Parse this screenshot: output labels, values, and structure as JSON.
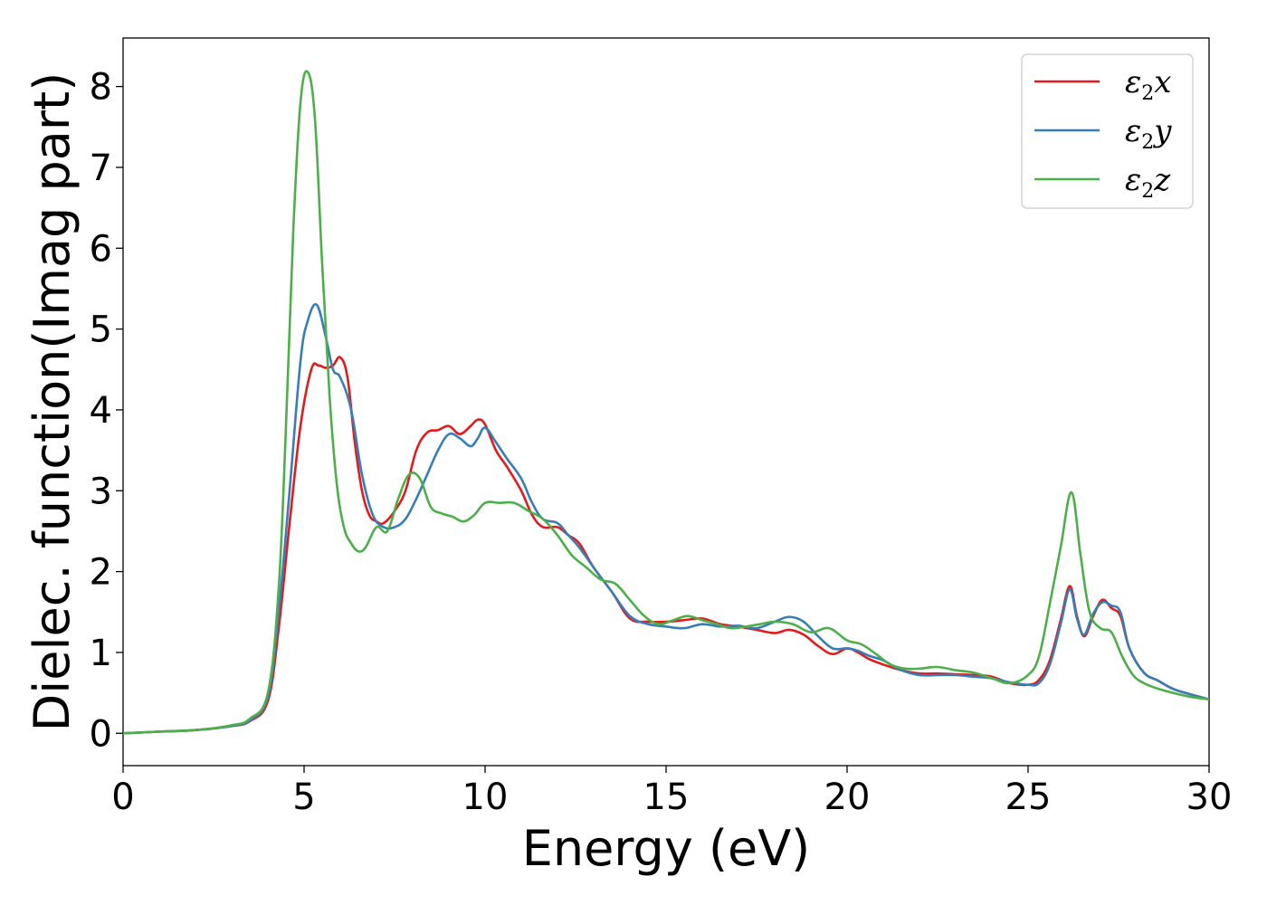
{
  "chart_data": {
    "type": "line",
    "xlabel": "Energy (eV)",
    "ylabel": "Dielec. function(Imag part)",
    "xlim": [
      0,
      30
    ],
    "ylim": [
      -0.4,
      8.6
    ],
    "xticks": [
      "0",
      "5",
      "10",
      "15",
      "20",
      "25",
      "30"
    ],
    "yticks": [
      "0",
      "1",
      "2",
      "3",
      "4",
      "5",
      "6",
      "7",
      "8"
    ],
    "grid": false,
    "legend_position": "top-right",
    "series": [
      {
        "name": "ε2x",
        "legend": {
          "symbol": "ε",
          "sub": "2",
          "axis": "x"
        },
        "color": "#e41a1c",
        "x": [
          0,
          1,
          2,
          3,
          3.5,
          4,
          4.3,
          4.6,
          4.9,
          5.2,
          5.4,
          5.6,
          5.8,
          6.0,
          6.2,
          6.4,
          6.6,
          6.8,
          7.0,
          7.2,
          7.5,
          7.8,
          8.1,
          8.4,
          8.7,
          9.0,
          9.3,
          9.6,
          9.8,
          10.0,
          10.3,
          10.6,
          11.0,
          11.3,
          11.6,
          12.0,
          12.3,
          12.6,
          13.0,
          13.5,
          14.0,
          14.5,
          15.0,
          15.5,
          16.0,
          16.5,
          17.0,
          17.5,
          18.0,
          18.4,
          18.8,
          19.2,
          19.6,
          20.0,
          20.3,
          20.6,
          21.0,
          21.5,
          22.0,
          22.5,
          23.0,
          23.5,
          24.0,
          24.5,
          25.0,
          25.3,
          25.6,
          25.9,
          26.15,
          26.35,
          26.55,
          26.8,
          27.05,
          27.3,
          27.55,
          27.8,
          28.2,
          28.6,
          29.0,
          29.5,
          30.0
        ],
        "y": [
          0,
          0.02,
          0.04,
          0.09,
          0.15,
          0.4,
          1.3,
          2.6,
          3.8,
          4.5,
          4.55,
          4.52,
          4.55,
          4.65,
          4.4,
          3.6,
          3.0,
          2.7,
          2.62,
          2.6,
          2.75,
          3.0,
          3.5,
          3.72,
          3.75,
          3.8,
          3.7,
          3.8,
          3.88,
          3.82,
          3.5,
          3.3,
          3.0,
          2.7,
          2.55,
          2.55,
          2.45,
          2.35,
          2.05,
          1.75,
          1.42,
          1.38,
          1.38,
          1.4,
          1.42,
          1.35,
          1.32,
          1.28,
          1.24,
          1.28,
          1.22,
          1.08,
          0.98,
          1.05,
          1.0,
          0.92,
          0.85,
          0.78,
          0.74,
          0.74,
          0.73,
          0.72,
          0.7,
          0.62,
          0.6,
          0.66,
          0.9,
          1.4,
          1.82,
          1.45,
          1.2,
          1.45,
          1.65,
          1.55,
          1.45,
          1.05,
          0.75,
          0.65,
          0.55,
          0.48,
          0.42
        ]
      },
      {
        "name": "ε2y",
        "legend": {
          "symbol": "ε",
          "sub": "2",
          "axis": "y"
        },
        "color": "#377eb8",
        "x": [
          0,
          1,
          2,
          3,
          3.5,
          4,
          4.3,
          4.6,
          4.9,
          5.1,
          5.35,
          5.6,
          5.8,
          6.0,
          6.3,
          6.6,
          6.9,
          7.2,
          7.5,
          7.8,
          8.1,
          8.4,
          8.7,
          9.0,
          9.3,
          9.6,
          9.8,
          10.0,
          10.3,
          10.6,
          11.0,
          11.3,
          11.6,
          12.0,
          12.3,
          12.6,
          13.0,
          13.5,
          14.0,
          14.5,
          15.0,
          15.5,
          16.0,
          16.5,
          17.0,
          17.5,
          18.0,
          18.4,
          18.8,
          19.2,
          19.6,
          20.0,
          20.3,
          20.6,
          21.0,
          21.5,
          22.0,
          22.5,
          23.0,
          23.5,
          24.0,
          24.5,
          25.0,
          25.3,
          25.6,
          25.9,
          26.15,
          26.35,
          26.55,
          26.8,
          27.05,
          27.3,
          27.55,
          27.8,
          28.2,
          28.6,
          29.0,
          29.5,
          30.0
        ],
        "y": [
          0,
          0.02,
          0.04,
          0.09,
          0.16,
          0.45,
          1.5,
          3.0,
          4.6,
          5.1,
          5.3,
          4.9,
          4.5,
          4.4,
          4.0,
          3.2,
          2.7,
          2.55,
          2.55,
          2.65,
          2.9,
          3.2,
          3.5,
          3.7,
          3.65,
          3.55,
          3.65,
          3.78,
          3.6,
          3.4,
          3.15,
          2.85,
          2.65,
          2.6,
          2.45,
          2.3,
          2.05,
          1.75,
          1.45,
          1.35,
          1.32,
          1.3,
          1.35,
          1.32,
          1.33,
          1.3,
          1.38,
          1.44,
          1.38,
          1.2,
          1.05,
          1.05,
          1.02,
          0.96,
          0.9,
          0.78,
          0.72,
          0.72,
          0.72,
          0.7,
          0.68,
          0.63,
          0.6,
          0.62,
          0.85,
          1.35,
          1.78,
          1.42,
          1.22,
          1.48,
          1.62,
          1.58,
          1.5,
          1.05,
          0.75,
          0.65,
          0.55,
          0.48,
          0.42
        ]
      },
      {
        "name": "ε2z",
        "legend": {
          "symbol": "ε",
          "sub": "2",
          "axis": "z"
        },
        "color": "#4daf4a",
        "x": [
          0,
          1,
          2,
          3,
          3.5,
          4,
          4.3,
          4.5,
          4.7,
          4.9,
          5.1,
          5.3,
          5.5,
          5.7,
          5.9,
          6.1,
          6.3,
          6.5,
          6.7,
          7.0,
          7.3,
          7.6,
          7.9,
          8.2,
          8.5,
          8.8,
          9.1,
          9.4,
          9.7,
          10.0,
          10.4,
          10.8,
          11.2,
          11.6,
          12.0,
          12.4,
          12.8,
          13.2,
          13.6,
          14.0,
          14.4,
          14.8,
          15.2,
          15.6,
          16.0,
          16.4,
          16.8,
          17.2,
          17.6,
          18.0,
          18.5,
          19.0,
          19.5,
          20.0,
          20.4,
          20.8,
          21.2,
          21.6,
          22.0,
          22.5,
          23.0,
          23.5,
          24.0,
          24.5,
          25.0,
          25.3,
          25.6,
          25.9,
          26.2,
          26.45,
          26.7,
          27.0,
          27.3,
          27.6,
          27.9,
          28.2,
          28.6,
          29.0,
          29.5,
          30.0
        ],
        "y": [
          0,
          0.02,
          0.04,
          0.1,
          0.18,
          0.5,
          1.8,
          3.8,
          6.2,
          7.8,
          8.18,
          7.6,
          5.8,
          4.2,
          3.1,
          2.55,
          2.35,
          2.25,
          2.3,
          2.55,
          2.5,
          2.9,
          3.2,
          3.15,
          2.8,
          2.72,
          2.68,
          2.62,
          2.7,
          2.85,
          2.85,
          2.85,
          2.75,
          2.65,
          2.45,
          2.2,
          2.05,
          1.9,
          1.85,
          1.65,
          1.45,
          1.35,
          1.4,
          1.45,
          1.4,
          1.35,
          1.3,
          1.32,
          1.35,
          1.38,
          1.35,
          1.25,
          1.3,
          1.15,
          1.1,
          0.98,
          0.85,
          0.8,
          0.8,
          0.82,
          0.78,
          0.75,
          0.68,
          0.62,
          0.72,
          0.95,
          1.6,
          2.3,
          2.98,
          2.2,
          1.5,
          1.3,
          1.25,
          0.95,
          0.72,
          0.62,
          0.55,
          0.5,
          0.45,
          0.42
        ]
      }
    ]
  }
}
